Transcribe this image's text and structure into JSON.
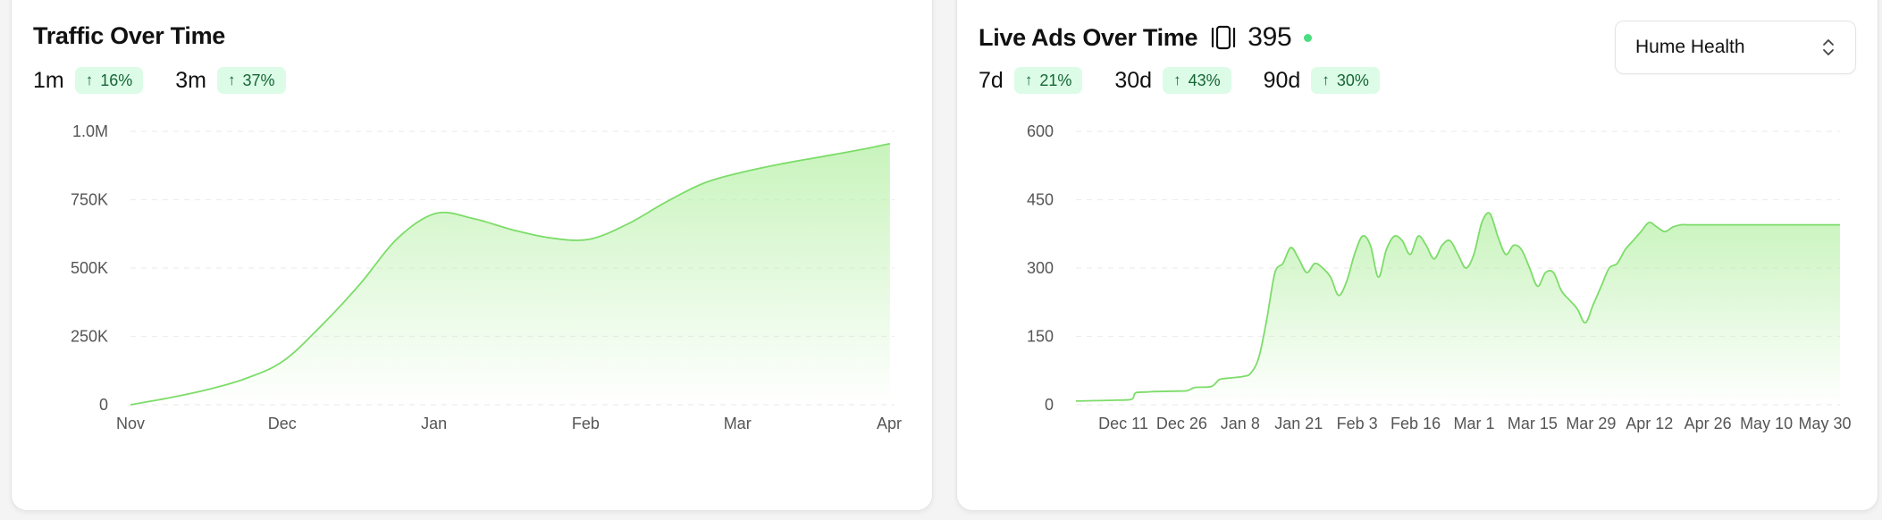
{
  "traffic": {
    "title": "Traffic Over Time",
    "stats": [
      {
        "label": "1m",
        "change": "16%"
      },
      {
        "label": "3m",
        "change": "37%"
      }
    ]
  },
  "ads": {
    "title": "Live Ads Over Time",
    "count": "395",
    "stats": [
      {
        "label": "7d",
        "change": "21%"
      },
      {
        "label": "30d",
        "change": "43%"
      },
      {
        "label": "90d",
        "change": "30%"
      }
    ],
    "brand_select": "Hume Health"
  },
  "colors": {
    "line": "#7ddc6a",
    "fill": "#b6f0a6",
    "badge_bg": "#dcfce7",
    "badge_text": "#166534",
    "live_dot": "#4ade80"
  },
  "icons": {
    "trend": "arrow-up-icon",
    "ads": "ad-carousel-icon",
    "select": "chevron-up-down-icon",
    "status": "live-status-dot"
  },
  "chart_data": [
    {
      "type": "area",
      "title": "Traffic Over Time",
      "x_ticks": [
        "Nov",
        "Dec",
        "Jan",
        "Feb",
        "Mar",
        "Apr"
      ],
      "y_ticks": [
        "0",
        "250K",
        "500K",
        "750K",
        "1.0M"
      ],
      "ylim": [
        0,
        1000000
      ],
      "grid": true,
      "x": [
        0,
        0.25,
        0.5,
        0.75,
        1.0,
        1.25,
        1.5,
        1.75,
        2.0,
        2.25,
        2.5,
        2.75,
        3.0,
        3.25,
        3.5,
        3.75,
        4.0,
        4.25,
        4.5,
        4.75,
        4.97
      ],
      "values": [
        0,
        25000,
        55000,
        95000,
        160000,
        290000,
        440000,
        610000,
        700000,
        680000,
        640000,
        610000,
        605000,
        660000,
        740000,
        810000,
        850000,
        880000,
        905000,
        930000,
        955000
      ]
    },
    {
      "type": "area",
      "title": "Live Ads Over Time",
      "x_ticks": [
        "Dec 11",
        "Dec 26",
        "Jan 8",
        "Jan 21",
        "Feb 3",
        "Feb 16",
        "Mar 1",
        "Mar 15",
        "Mar 29",
        "Apr 12",
        "Apr 26",
        "May 10",
        "May 30"
      ],
      "y_ticks": [
        "0",
        "150",
        "300",
        "450",
        "600"
      ],
      "ylim": [
        0,
        600
      ],
      "grid": true,
      "x": [
        0,
        5,
        10,
        14,
        15,
        18,
        20,
        26,
        28,
        30,
        34,
        36,
        38,
        42,
        44,
        46,
        48,
        50,
        52,
        54,
        56,
        58,
        60,
        62,
        64,
        66,
        68,
        70,
        72,
        74,
        76,
        78,
        80,
        82,
        84,
        86,
        88,
        90,
        92,
        94,
        96,
        98,
        100,
        102,
        104,
        106,
        108,
        110,
        112,
        114,
        116,
        118,
        120,
        122,
        124,
        126,
        128,
        130,
        132,
        134,
        136,
        138,
        140,
        142,
        144,
        146,
        148,
        150,
        152,
        154,
        156,
        158,
        160,
        162,
        164,
        166,
        168,
        170,
        172,
        174,
        176,
        178,
        180,
        182,
        184,
        186,
        188,
        190,
        192
      ],
      "values": [
        8,
        9,
        10,
        12,
        26,
        28,
        29,
        30,
        31,
        38,
        40,
        55,
        58,
        62,
        70,
        105,
        190,
        290,
        310,
        345,
        320,
        290,
        310,
        300,
        280,
        240,
        270,
        330,
        370,
        350,
        280,
        340,
        370,
        360,
        330,
        370,
        350,
        320,
        350,
        360,
        330,
        300,
        330,
        400,
        420,
        370,
        330,
        350,
        340,
        300,
        260,
        290,
        290,
        250,
        230,
        210,
        180,
        220,
        260,
        300,
        310,
        340,
        360,
        380,
        400,
        390,
        380,
        390,
        395,
        395,
        395,
        395,
        395,
        395,
        395,
        395,
        395,
        395,
        395,
        395,
        395,
        395,
        395,
        395,
        395,
        395,
        395,
        395,
        395
      ]
    }
  ]
}
